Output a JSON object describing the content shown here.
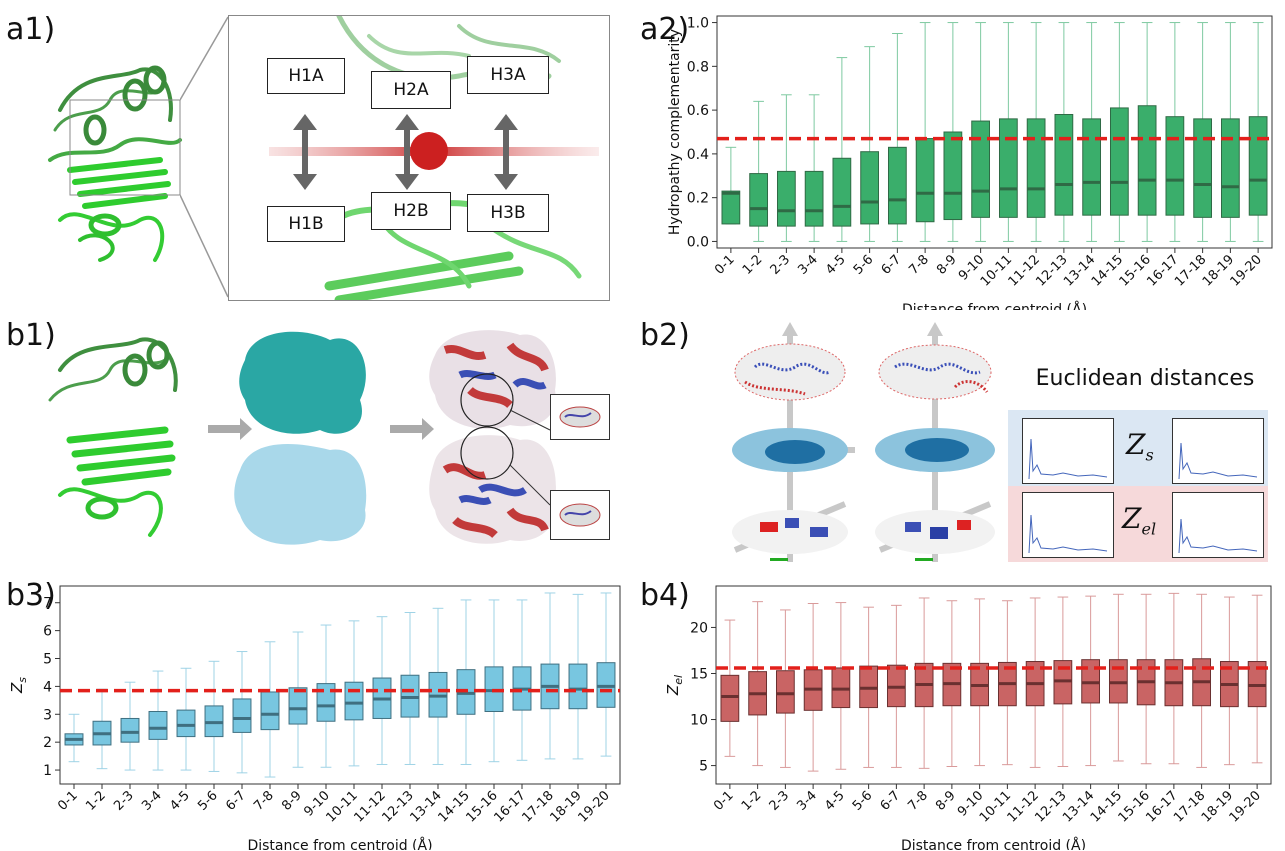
{
  "labels": {
    "a1": "a1)",
    "a2": "a2)",
    "b1": "b1)",
    "b2": "b2)",
    "b3": "b3)",
    "b4": "b4)"
  },
  "a1": {
    "hotspots_top": [
      "H1A",
      "H2A",
      "H3A"
    ],
    "hotspots_bottom": [
      "H1B",
      "H2B",
      "H3B"
    ]
  },
  "b2": {
    "title": "Euclidean distances",
    "zs_label": "Z",
    "zs_sub": "s",
    "zel_label": "Z",
    "zel_sub": "el",
    "zs_color": "#dbe7f3",
    "zel_color": "#f6d9da"
  },
  "colors": {
    "green_box": "#3aae6b",
    "blue_box": "#78c6e0",
    "red_box": "#c96464",
    "threshold": "#e3201b"
  },
  "chart_data": [
    {
      "id": "a2",
      "type": "box",
      "ylabel": "Hydropathy complementarity",
      "xlabel": "Distance from centroid (Å)",
      "categories": [
        "0-1",
        "1-2",
        "2-3",
        "3-4",
        "4-5",
        "5-6",
        "6-7",
        "7-8",
        "8-9",
        "9-10",
        "10-11",
        "11-12",
        "12-13",
        "13-14",
        "14-15",
        "15-16",
        "16-17",
        "17-18",
        "18-19",
        "19-20"
      ],
      "yticks": [
        "0.0",
        "0.2",
        "0.4",
        "0.6",
        "0.8",
        "1.0"
      ],
      "ylim": [
        -0.03,
        1.03
      ],
      "threshold": 0.47,
      "whisker_low": [
        0.08,
        0.0,
        0.0,
        0.0,
        0.0,
        0.0,
        0.0,
        0.0,
        0.0,
        0.0,
        0.0,
        0.0,
        0.0,
        0.0,
        0.0,
        0.0,
        0.0,
        0.0,
        0.0,
        0.0
      ],
      "q1": [
        0.08,
        0.07,
        0.07,
        0.07,
        0.07,
        0.08,
        0.08,
        0.09,
        0.1,
        0.11,
        0.11,
        0.11,
        0.12,
        0.12,
        0.12,
        0.12,
        0.12,
        0.11,
        0.11,
        0.12
      ],
      "median": [
        0.22,
        0.15,
        0.14,
        0.14,
        0.16,
        0.18,
        0.19,
        0.22,
        0.22,
        0.23,
        0.24,
        0.24,
        0.26,
        0.27,
        0.27,
        0.28,
        0.28,
        0.26,
        0.25,
        0.28
      ],
      "q3": [
        0.23,
        0.31,
        0.32,
        0.32,
        0.38,
        0.41,
        0.43,
        0.47,
        0.5,
        0.55,
        0.56,
        0.56,
        0.58,
        0.56,
        0.61,
        0.62,
        0.57,
        0.56,
        0.56,
        0.57
      ],
      "whisker_high": [
        0.43,
        0.64,
        0.67,
        0.67,
        0.84,
        0.89,
        0.95,
        1.0,
        1.0,
        1.0,
        1.0,
        1.0,
        1.0,
        1.0,
        1.0,
        1.0,
        1.0,
        1.0,
        1.0,
        1.0
      ]
    },
    {
      "id": "b3",
      "type": "box",
      "ylabel": "Z_s",
      "xlabel": "Distance from centroid (Å)",
      "categories": [
        "0-1",
        "1-2",
        "2-3",
        "3-4",
        "4-5",
        "5-6",
        "6-7",
        "7-8",
        "8-9",
        "9-10",
        "10-11",
        "11-12",
        "12-13",
        "13-14",
        "14-15",
        "15-16",
        "16-17",
        "17-18",
        "18-19",
        "19-20"
      ],
      "yticks": [
        "1",
        "2",
        "3",
        "4",
        "5",
        "6",
        "7"
      ],
      "ylim": [
        0.5,
        7.6
      ],
      "threshold": 3.85,
      "whisker_low": [
        1.3,
        1.05,
        1.0,
        1.0,
        1.0,
        0.95,
        0.9,
        0.75,
        1.1,
        1.1,
        1.15,
        1.2,
        1.2,
        1.2,
        1.2,
        1.3,
        1.35,
        1.4,
        1.4,
        1.5
      ],
      "q1": [
        1.9,
        1.9,
        2.0,
        2.1,
        2.2,
        2.2,
        2.35,
        2.45,
        2.65,
        2.75,
        2.8,
        2.85,
        2.9,
        2.9,
        3.0,
        3.1,
        3.15,
        3.2,
        3.2,
        3.25
      ],
      "median": [
        2.1,
        2.3,
        2.35,
        2.5,
        2.6,
        2.7,
        2.85,
        3.0,
        3.2,
        3.3,
        3.4,
        3.55,
        3.6,
        3.65,
        3.75,
        3.85,
        3.9,
        4.0,
        3.9,
        4.0
      ],
      "q3": [
        2.3,
        2.75,
        2.85,
        3.1,
        3.15,
        3.3,
        3.55,
        3.8,
        3.95,
        4.1,
        4.15,
        4.3,
        4.4,
        4.5,
        4.6,
        4.7,
        4.7,
        4.8,
        4.8,
        4.85
      ],
      "whisker_high": [
        3.0,
        3.9,
        4.15,
        4.55,
        4.65,
        4.9,
        5.25,
        5.6,
        5.95,
        6.2,
        6.35,
        6.5,
        6.65,
        6.8,
        7.1,
        7.1,
        7.1,
        7.35,
        7.3,
        7.35
      ]
    },
    {
      "id": "b4",
      "type": "box",
      "ylabel": "Z_el",
      "xlabel": "Distance from centroid (Å)",
      "categories": [
        "0-1",
        "1-2",
        "2-3",
        "3-4",
        "4-5",
        "5-6",
        "6-7",
        "7-8",
        "8-9",
        "9-10",
        "10-11",
        "11-12",
        "12-13",
        "13-14",
        "14-15",
        "15-16",
        "16-17",
        "17-18",
        "18-19",
        "19-20"
      ],
      "yticks": [
        "5",
        "10",
        "15",
        "20"
      ],
      "ylim": [
        3.0,
        24.5
      ],
      "threshold": 15.6,
      "whisker_low": [
        6.0,
        5.0,
        4.8,
        4.4,
        4.6,
        4.8,
        4.8,
        4.7,
        4.9,
        5.0,
        5.1,
        4.8,
        4.9,
        5.0,
        5.5,
        5.2,
        5.2,
        4.8,
        5.1,
        5.3
      ],
      "q1": [
        9.8,
        10.5,
        10.7,
        11.0,
        11.3,
        11.3,
        11.4,
        11.4,
        11.5,
        11.5,
        11.5,
        11.5,
        11.7,
        11.8,
        11.8,
        11.6,
        11.5,
        11.5,
        11.4,
        11.4
      ],
      "median": [
        12.5,
        12.8,
        12.8,
        13.3,
        13.3,
        13.4,
        13.5,
        13.8,
        13.9,
        13.7,
        13.9,
        13.9,
        14.2,
        14.0,
        14.0,
        14.1,
        14.0,
        14.1,
        13.8,
        13.7
      ],
      "q3": [
        14.8,
        15.2,
        15.3,
        15.4,
        15.6,
        15.8,
        15.9,
        16.1,
        16.1,
        16.1,
        16.2,
        16.3,
        16.4,
        16.5,
        16.5,
        16.5,
        16.5,
        16.6,
        16.3,
        16.3
      ],
      "whisker_high": [
        20.8,
        22.8,
        21.9,
        22.6,
        22.7,
        22.2,
        22.4,
        23.2,
        22.9,
        23.1,
        22.9,
        23.2,
        23.3,
        23.4,
        23.6,
        23.6,
        23.7,
        23.6,
        23.3,
        23.5
      ]
    }
  ]
}
